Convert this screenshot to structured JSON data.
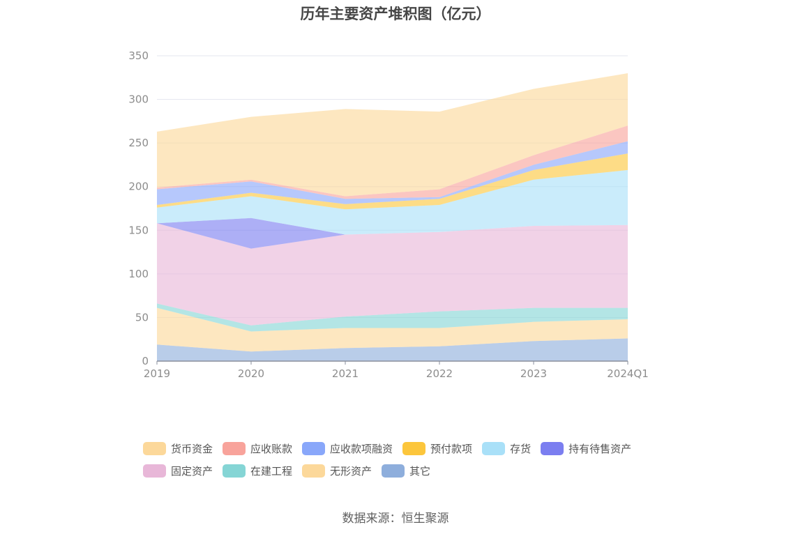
{
  "chart_data": {
    "type": "area",
    "stacked": true,
    "title": "历年主要资产堆积图（亿元）",
    "categories": [
      "2019",
      "2020",
      "2021",
      "2022",
      "2023",
      "2024Q1"
    ],
    "ylim": [
      0,
      350
    ],
    "yticks": [
      0,
      50,
      100,
      150,
      200,
      250,
      300,
      350
    ],
    "grid": true,
    "legend_position": "bottom",
    "series": [
      {
        "name": "其它",
        "color": "#8eaedc",
        "values": [
          19,
          11,
          15,
          17,
          23,
          26
        ]
      },
      {
        "name": "无形资产",
        "color": "#fcd89a",
        "values": [
          42,
          23,
          23,
          21,
          22,
          22
        ]
      },
      {
        "name": "在建工程",
        "color": "#85d5d5",
        "values": [
          5,
          7,
          13,
          19,
          16,
          13
        ]
      },
      {
        "name": "固定资产",
        "color": "#e8b7d8",
        "values": [
          92,
          88,
          94,
          91,
          94,
          95
        ]
      },
      {
        "name": "持有待售资产",
        "color": "#7b7ef0",
        "values": [
          0,
          35,
          0,
          0,
          0,
          0
        ]
      },
      {
        "name": "存货",
        "color": "#a9e0f8",
        "values": [
          18,
          25,
          29,
          31,
          53,
          63
        ]
      },
      {
        "name": "预付款项",
        "color": "#fcc63c",
        "values": [
          3,
          4,
          6,
          7,
          11,
          19
        ]
      },
      {
        "name": "应收款项融资",
        "color": "#89a7fa",
        "values": [
          18,
          13,
          6,
          2,
          6,
          14
        ]
      },
      {
        "name": "应收账款",
        "color": "#f8a39b",
        "values": [
          2,
          2,
          3,
          9,
          11,
          18
        ]
      },
      {
        "name": "货币资金",
        "color": "#fcd89a",
        "values": [
          64,
          72,
          100,
          89,
          76,
          60
        ]
      }
    ],
    "legend_order": [
      "货币资金",
      "应收账款",
      "应收款项融资",
      "预付款项",
      "存货",
      "持有待售资产",
      "固定资产",
      "在建工程",
      "无形资产",
      "其它"
    ]
  },
  "source": "数据来源：恒生聚源"
}
